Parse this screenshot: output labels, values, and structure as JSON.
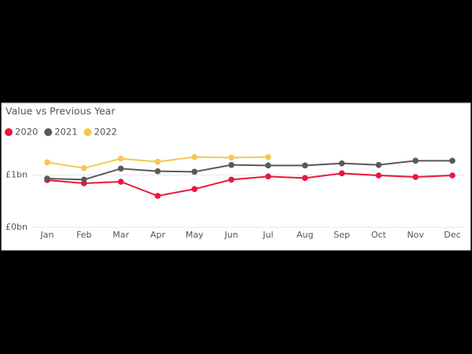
{
  "chart_data": {
    "type": "line",
    "title": "Value vs Previous Year",
    "categories": [
      "Jan",
      "Feb",
      "Mar",
      "Apr",
      "May",
      "Jun",
      "Jul",
      "Aug",
      "Sep",
      "Oct",
      "Nov",
      "Dec"
    ],
    "series": [
      {
        "name": "2020",
        "color": "#e8173f",
        "values": [
          0.9,
          0.84,
          0.87,
          0.6,
          0.73,
          0.91,
          0.97,
          0.94,
          1.03,
          0.99,
          0.96,
          0.99
        ]
      },
      {
        "name": "2021",
        "color": "#595959",
        "values": [
          0.93,
          0.91,
          1.12,
          1.07,
          1.06,
          1.19,
          1.18,
          1.18,
          1.22,
          1.19,
          1.27,
          1.27
        ]
      },
      {
        "name": "2022",
        "color": "#f7c64f",
        "values": [
          1.24,
          1.13,
          1.31,
          1.25,
          1.34,
          1.33,
          1.34,
          null,
          null,
          null,
          null,
          null
        ]
      }
    ],
    "ylim": [
      0,
      1.5
    ],
    "yticks": [
      {
        "value": 0,
        "label": "£0bn"
      },
      {
        "value": 1,
        "label": "£1bn"
      }
    ],
    "grid": true,
    "legend": "top-left"
  }
}
